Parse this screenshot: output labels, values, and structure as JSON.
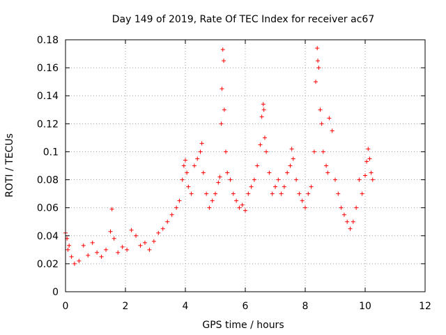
{
  "chart_data": {
    "type": "scatter",
    "title": "Day 149 of 2019, Rate Of TEC Index for receiver ac67",
    "xlabel": "GPS time / hours",
    "ylabel": "ROTI / TECUs",
    "xlim": [
      0,
      12
    ],
    "ylim": [
      0,
      0.18
    ],
    "xticks": [
      "0",
      "2",
      "4",
      "6",
      "8",
      "10",
      "12"
    ],
    "xtick_values": [
      0,
      2,
      4,
      6,
      8,
      10,
      12
    ],
    "yticks": [
      "0",
      "0.02",
      "0.04",
      "0.06",
      "0.08",
      "0.1",
      "0.12",
      "0.14",
      "0.16",
      "0.18"
    ],
    "ytick_values": [
      0,
      0.02,
      0.04,
      0.06,
      0.08,
      0.1,
      0.12,
      0.14,
      0.16,
      0.18
    ],
    "grid": true,
    "marker": "+",
    "marker_color": "#ff0000",
    "series": [
      {
        "name": "ROTI",
        "x": [
          0.0,
          0.05,
          0.08,
          0.12,
          0.2,
          0.3,
          0.45,
          0.6,
          0.75,
          0.9,
          1.05,
          1.2,
          1.35,
          1.5,
          1.55,
          1.62,
          1.75,
          1.9,
          2.05,
          2.2,
          2.35,
          2.5,
          2.65,
          2.8,
          2.95,
          3.1,
          3.25,
          3.4,
          3.55,
          3.7,
          3.8,
          3.9,
          3.95,
          4.0,
          4.05,
          4.1,
          4.2,
          4.3,
          4.4,
          4.5,
          4.55,
          4.6,
          4.7,
          4.8,
          4.9,
          5.0,
          5.1,
          5.15,
          5.2,
          5.22,
          5.25,
          5.28,
          5.3,
          5.35,
          5.4,
          5.5,
          5.6,
          5.7,
          5.8,
          5.9,
          6.0,
          6.1,
          6.2,
          6.3,
          6.4,
          6.5,
          6.55,
          6.6,
          6.62,
          6.65,
          6.7,
          6.8,
          6.9,
          7.0,
          7.1,
          7.2,
          7.3,
          7.4,
          7.5,
          7.55,
          7.6,
          7.7,
          7.8,
          7.9,
          8.0,
          8.1,
          8.2,
          8.3,
          8.35,
          8.4,
          8.42,
          8.45,
          8.5,
          8.55,
          8.6,
          8.7,
          8.75,
          8.8,
          8.9,
          9.0,
          9.1,
          9.2,
          9.3,
          9.4,
          9.5,
          9.6,
          9.7,
          9.8,
          9.9,
          10.0,
          10.05,
          10.1,
          10.15,
          10.2,
          10.25
        ],
        "y": [
          0.042,
          0.038,
          0.03,
          0.033,
          0.025,
          0.02,
          0.022,
          0.033,
          0.026,
          0.035,
          0.028,
          0.025,
          0.03,
          0.043,
          0.059,
          0.038,
          0.028,
          0.032,
          0.03,
          0.044,
          0.04,
          0.033,
          0.035,
          0.03,
          0.036,
          0.042,
          0.045,
          0.05,
          0.055,
          0.06,
          0.065,
          0.08,
          0.09,
          0.094,
          0.085,
          0.075,
          0.07,
          0.09,
          0.095,
          0.1,
          0.106,
          0.085,
          0.07,
          0.06,
          0.065,
          0.07,
          0.078,
          0.082,
          0.12,
          0.145,
          0.173,
          0.165,
          0.13,
          0.1,
          0.085,
          0.08,
          0.07,
          0.065,
          0.06,
          0.062,
          0.058,
          0.07,
          0.075,
          0.08,
          0.09,
          0.105,
          0.125,
          0.134,
          0.13,
          0.11,
          0.1,
          0.085,
          0.07,
          0.075,
          0.08,
          0.07,
          0.075,
          0.085,
          0.09,
          0.102,
          0.095,
          0.08,
          0.07,
          0.065,
          0.06,
          0.07,
          0.075,
          0.1,
          0.15,
          0.174,
          0.165,
          0.16,
          0.13,
          0.12,
          0.1,
          0.09,
          0.085,
          0.124,
          0.115,
          0.08,
          0.07,
          0.06,
          0.055,
          0.05,
          0.045,
          0.05,
          0.06,
          0.08,
          0.07,
          0.083,
          0.093,
          0.102,
          0.095,
          0.085,
          0.08
        ]
      }
    ]
  }
}
